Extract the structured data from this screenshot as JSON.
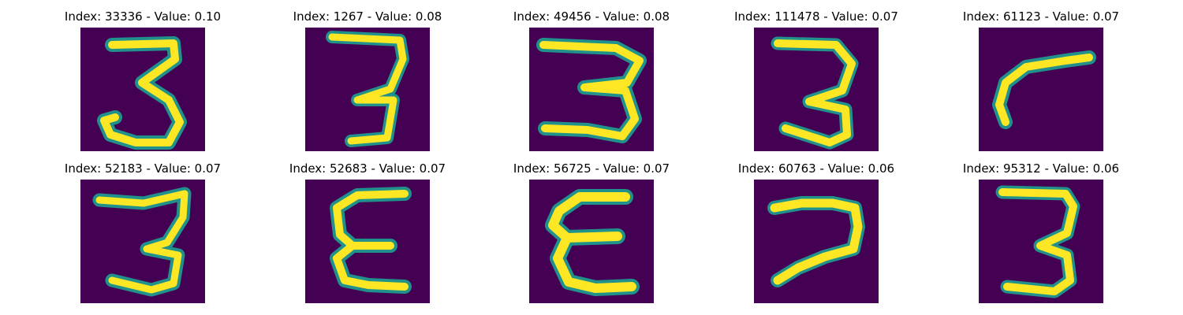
{
  "panels": [
    {
      "title": "Index: 33336 - Value: 0.10",
      "digit": "3"
    },
    {
      "title": "Index: 1267 - Value: 0.08",
      "digit": "3"
    },
    {
      "title": "Index: 49456 - Value: 0.08",
      "digit": "3"
    },
    {
      "title": "Index: 111478 - Value: 0.07",
      "digit": "3"
    },
    {
      "title": "Index: 61123 - Value: 0.07",
      "digit": "7-rotated"
    },
    {
      "title": "Index: 52183 - Value: 0.07",
      "digit": "3"
    },
    {
      "title": "Index: 52683 - Value: 0.07",
      "digit": "E"
    },
    {
      "title": "Index: 56725 - Value: 0.07",
      "digit": "E"
    },
    {
      "title": "Index: 60763 - Value: 0.06",
      "digit": "7-rotated"
    },
    {
      "title": "Index: 95312 - Value: 0.06",
      "digit": "3"
    }
  ],
  "colors": {
    "background": "#440154",
    "stroke": "#fde725",
    "edge": "#21918c"
  }
}
